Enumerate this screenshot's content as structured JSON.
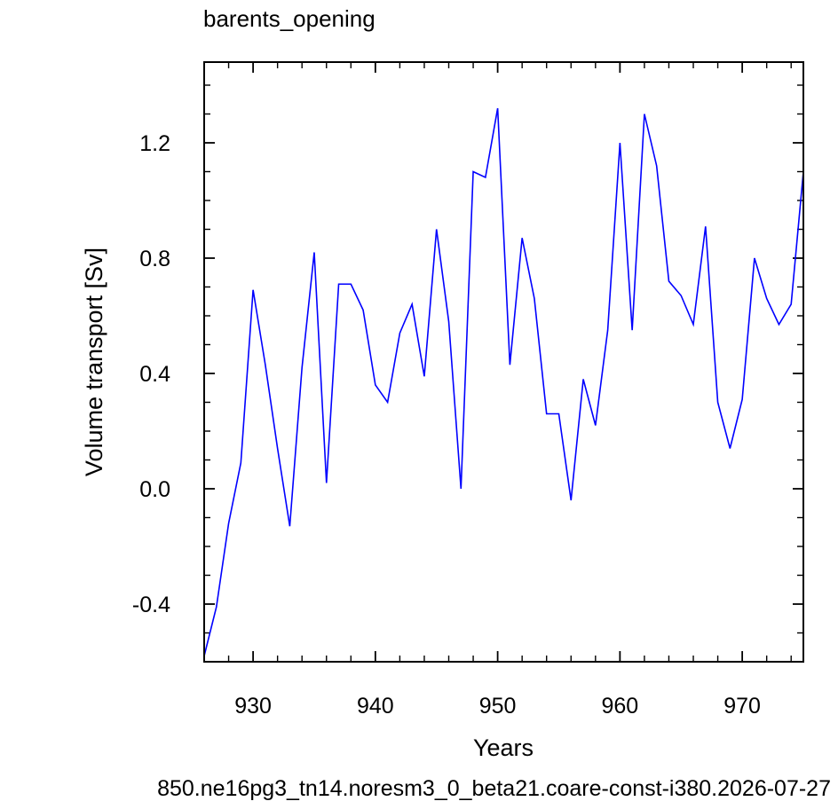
{
  "chart_data": {
    "type": "line",
    "title": "barents_opening",
    "xlabel": "Years",
    "ylabel": "Volume transport [Sv]",
    "xlim": [
      926,
      975
    ],
    "ylim": [
      -0.6,
      1.48
    ],
    "xticks": [
      930,
      940,
      950,
      960,
      970
    ],
    "xtick_labels": [
      "930",
      "940",
      "950",
      "960",
      "970"
    ],
    "yticks": [
      -0.4,
      0.0,
      0.4,
      0.8,
      1.2
    ],
    "ytick_labels": [
      "-0.4",
      "0.0",
      "0.4",
      "0.8",
      "1.2"
    ],
    "grid": false,
    "series": [
      {
        "color": "#0000ff",
        "x": [
          926,
          927,
          928,
          929,
          930,
          931,
          932,
          933,
          934,
          935,
          936,
          937,
          938,
          939,
          940,
          941,
          942,
          943,
          944,
          945,
          946,
          947,
          948,
          949,
          950,
          951,
          952,
          953,
          954,
          955,
          956,
          957,
          958,
          959,
          960,
          961,
          962,
          963,
          964,
          965,
          966,
          967,
          968,
          969,
          970,
          971,
          972,
          973,
          974,
          975
        ],
        "y": [
          -0.58,
          -0.41,
          -0.12,
          0.09,
          0.69,
          0.43,
          0.14,
          -0.13,
          0.42,
          0.82,
          0.02,
          0.71,
          0.71,
          0.62,
          0.36,
          0.3,
          0.54,
          0.64,
          0.39,
          0.9,
          0.58,
          0.0,
          1.1,
          1.08,
          1.32,
          0.43,
          0.87,
          0.66,
          0.26,
          0.26,
          -0.04,
          0.38,
          0.22,
          0.55,
          1.2,
          0.55,
          1.3,
          1.12,
          0.72,
          0.67,
          0.57,
          0.91,
          0.3,
          0.14,
          0.31,
          0.8,
          0.66,
          0.57,
          0.64,
          1.1
        ]
      }
    ]
  },
  "footer": {
    "text": "850.ne16pg3_tn14.noresm3_0_beta21.coare-const-i380.2026-07-27",
    "color": "#0000ff"
  }
}
